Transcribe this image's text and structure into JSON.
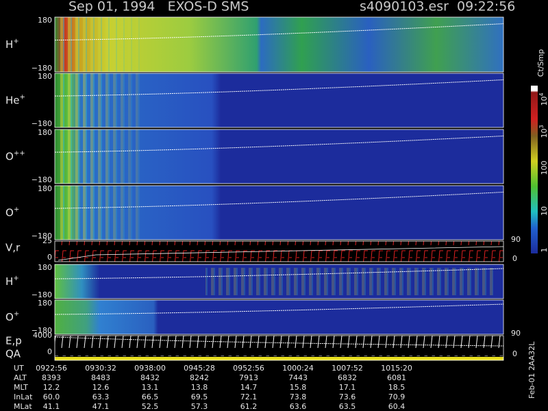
{
  "header": {
    "left": "Sep 01, 1994   EXOS-D SMS",
    "right": "s4090103.esr  09:22:56"
  },
  "panels": [
    {
      "label": "H",
      "charge": "+",
      "yticks": [
        "180",
        "−180"
      ]
    },
    {
      "label": "He",
      "charge": "+",
      "yticks": [
        "180",
        "−180"
      ]
    },
    {
      "label": "O",
      "charge": "++",
      "yticks": [
        "180",
        "−180"
      ]
    },
    {
      "label": "O",
      "charge": "+",
      "yticks": [
        "180",
        "−180"
      ]
    },
    {
      "label": "H",
      "charge": "+",
      "yticks": [
        "180",
        "−180"
      ]
    },
    {
      "label": "O",
      "charge": "+",
      "yticks": [
        "180",
        "−180"
      ]
    }
  ],
  "vr": {
    "label": "V,r",
    "left_ticks": [
      "25",
      "0"
    ],
    "right_ticks": [
      "90",
      "0"
    ]
  },
  "ep": {
    "label": "E,p",
    "label2": "QA",
    "left_ticks": [
      "4000",
      "0"
    ],
    "right_ticks": [
      "90",
      "0"
    ]
  },
  "colorbar": {
    "title": "Ct/Smp",
    "ticks": [
      {
        "base": "10",
        "exp": "4"
      },
      {
        "base": "10",
        "exp": "3"
      },
      "100",
      "10",
      "1"
    ]
  },
  "table": {
    "rows": [
      {
        "label": "UT",
        "values": [
          "0922:56",
          "0930:32",
          "0938:00",
          "0945:28",
          "0952:56",
          "1000:24",
          "1007:52",
          "1015:20"
        ]
      },
      {
        "label": "ALT",
        "values": [
          "8393",
          "8483",
          "8432",
          "8242",
          "7913",
          "7443",
          "6832",
          "6081"
        ]
      },
      {
        "label": "MLT",
        "values": [
          "12.2",
          "12.6",
          "13.1",
          "13.8",
          "14.7",
          "15.8",
          "17.1",
          "18.5"
        ]
      },
      {
        "label": "InLat",
        "values": [
          "60.0",
          "63.3",
          "66.5",
          "69.5",
          "72.1",
          "73.8",
          "73.6",
          "70.9"
        ]
      },
      {
        "label": "MLat",
        "values": [
          "41.1",
          "47.1",
          "52.5",
          "57.3",
          "61.2",
          "63.6",
          "63.5",
          "60.4"
        ]
      }
    ]
  },
  "footer": "Feb-01 2AA32L"
}
